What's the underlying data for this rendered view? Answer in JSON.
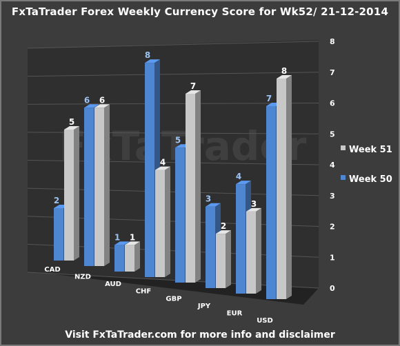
{
  "title": "FxTaTrader Forex Weekly Currency Score for Wk52/ 21-12-2014",
  "footer": "Visit FxTaTrader.com for more info and disclaimer",
  "watermark": "FxTaTrader",
  "colors": {
    "week50": "#4f86d1",
    "week51": "#c8c8c8",
    "label50": "#9cc3f2",
    "label51": "#ffffff"
  },
  "chart_data": {
    "type": "bar",
    "categories": [
      "CAD",
      "NZD",
      "AUD",
      "CHF",
      "GBP",
      "JPY",
      "EUR",
      "USD"
    ],
    "series": [
      {
        "name": "Week 50",
        "values": [
          2,
          6,
          1,
          8,
          5,
          3,
          4,
          7
        ]
      },
      {
        "name": "Week 51",
        "values": [
          5,
          6,
          1,
          4,
          7,
          2,
          3,
          8
        ]
      }
    ],
    "ylim": [
      0,
      8
    ],
    "yticks": [
      "0",
      "1",
      "2",
      "3",
      "4",
      "5",
      "6",
      "7",
      "8"
    ],
    "grid": true,
    "legend_position": "right"
  }
}
